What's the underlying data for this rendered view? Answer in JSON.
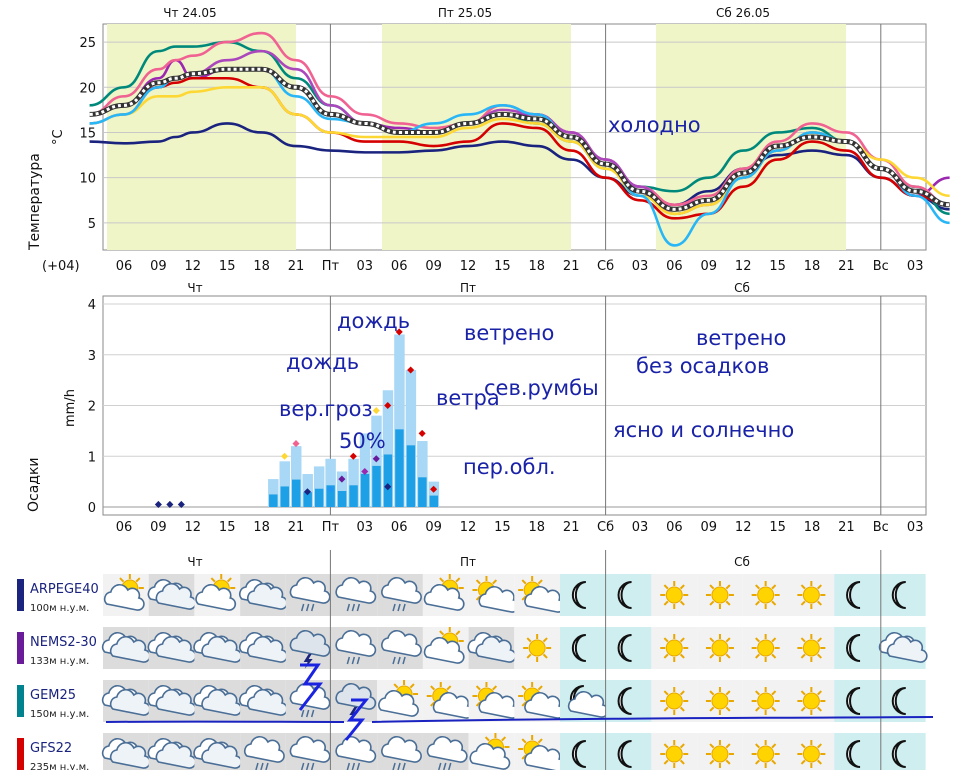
{
  "header_days": [
    {
      "label": "Чт 24.05"
    },
    {
      "label": "Пт 25.05"
    },
    {
      "label": "Сб 26.05"
    }
  ],
  "tz_label": "(+04)",
  "time_ticks": [
    "06",
    "09",
    "12",
    "15",
    "18",
    "21",
    "Пт",
    "03",
    "06",
    "09",
    "12",
    "15",
    "18",
    "21",
    "Сб",
    "03",
    "06",
    "09",
    "12",
    "15",
    "18",
    "21",
    "Вс",
    "03"
  ],
  "day_short": [
    "Чт",
    "Пт",
    "Сб"
  ],
  "temp_panel": {
    "ylabel": "Температура",
    "unit": "°C"
  },
  "precip_panel": {
    "ylabel": "Осадки",
    "unit": "mm/h"
  },
  "annotations": {
    "cold": "холодно",
    "rain1": "дождь",
    "rain2": "дождь",
    "thunder": "вер.гроз",
    "pct": "50%",
    "windy1": "ветрено",
    "wind": "ветра",
    "north": "сев.румбы",
    "cloudy": "пер.обл.",
    "windy2": "ветрено",
    "dry": "без осадков",
    "sunny": "ясно и солнечно"
  },
  "models": [
    {
      "name": "ARPEGE40",
      "alt": "100м н.у.м.",
      "color": "#1a237e",
      "icons": [
        "pc",
        "c",
        "pc",
        "c",
        "cr",
        "cr",
        "cr",
        "pc",
        "ps",
        "ps",
        "mn",
        "mn",
        "s",
        "s",
        "s",
        "s",
        "mn",
        "mn"
      ]
    },
    {
      "name": "NEMS2-30",
      "alt": "133м н.у.м.",
      "color": "#6a1b9a",
      "icons": [
        "c",
        "c",
        "c",
        "c",
        "ct",
        "cr",
        "cr",
        "pc",
        "c",
        "s",
        "mn",
        "mn",
        "s",
        "s",
        "s",
        "s",
        "mn",
        "c"
      ]
    },
    {
      "name": "GEM25",
      "alt": "150м н.у.м.",
      "color": "#00838f",
      "icons": [
        "c",
        "c",
        "c",
        "c",
        "cr",
        "ct",
        "pc",
        "ps",
        "ps",
        "ps",
        "mc",
        "mn",
        "s",
        "s",
        "s",
        "s",
        "mn",
        "mn"
      ]
    },
    {
      "name": "GFS22",
      "alt": "235м н.у.м.",
      "color": "#d50000",
      "icons": [
        "c",
        "c",
        "c",
        "cr",
        "cr",
        "cr",
        "cr",
        "cr",
        "pc",
        "ps",
        "mn",
        "mn",
        "s",
        "s",
        "s",
        "s",
        "mn",
        "mn"
      ]
    }
  ],
  "chart_data": [
    {
      "type": "line",
      "ylabel": "Температура",
      "unit": "°C",
      "x_hours": [
        3,
        6,
        9,
        10.5,
        12,
        15,
        18,
        21,
        24,
        27,
        30,
        33,
        36,
        39,
        42,
        45,
        48,
        51,
        54,
        57,
        60,
        63,
        66,
        69,
        72,
        75,
        78
      ],
      "ylim": [
        2,
        27
      ],
      "yticks": [
        5,
        10,
        15,
        20,
        25
      ],
      "series": [
        {
          "color": "#1a237e",
          "values": [
            14,
            13.8,
            14,
            14.5,
            15,
            16,
            15,
            13.5,
            13,
            12.8,
            12.8,
            13,
            13.5,
            14,
            13.5,
            12,
            10,
            8,
            7,
            8.5,
            11,
            12.5,
            13,
            12.5,
            10,
            8,
            6.5
          ]
        },
        {
          "color": "#9c27b0",
          "values": [
            17,
            18,
            21,
            23,
            21,
            22,
            22,
            20,
            17,
            16,
            15.5,
            15,
            16,
            17,
            17,
            15,
            12,
            9,
            7,
            7.5,
            10,
            13,
            15,
            14,
            11,
            8,
            10
          ]
        },
        {
          "color": "#00897b",
          "values": [
            18,
            20,
            24,
            24.5,
            24.5,
            25,
            24,
            21,
            18,
            16,
            15,
            15,
            16,
            17,
            16,
            14,
            11,
            9,
            8.5,
            10,
            13,
            15,
            15.5,
            14,
            11,
            9,
            6
          ]
        },
        {
          "color": "#f06292",
          "values": [
            17,
            19,
            22,
            23,
            23.5,
            25,
            26,
            23,
            19,
            17,
            16,
            15.5,
            16,
            18,
            17,
            15,
            12,
            9,
            7,
            8,
            11,
            14,
            16,
            15,
            12,
            9,
            7
          ]
        },
        {
          "color": "#ab47bc",
          "values": [
            16,
            17,
            20,
            21,
            21.5,
            23,
            24,
            22,
            18,
            16,
            15,
            15,
            16,
            17.5,
            17,
            15,
            12,
            9,
            6,
            7,
            10,
            13,
            15,
            14,
            11,
            8,
            7
          ]
        },
        {
          "color": "#d50000",
          "values": [
            17,
            18,
            20,
            20.5,
            21,
            21,
            20,
            17,
            15,
            14,
            14,
            13.5,
            14,
            16,
            15.5,
            13,
            10,
            7.5,
            5.5,
            6,
            9,
            12,
            14,
            13,
            10,
            8,
            7
          ]
        },
        {
          "color": "#fdd835",
          "values": [
            16,
            17,
            19,
            19,
            19.5,
            20,
            20,
            17,
            15,
            14.5,
            14.5,
            14.5,
            15.5,
            16.5,
            16,
            14,
            11,
            8,
            6,
            7,
            10,
            13,
            15,
            14,
            12,
            10,
            8
          ]
        },
        {
          "color": "#29b6f6",
          "values": [
            16,
            17,
            20,
            21,
            21.5,
            22,
            22,
            19,
            16.5,
            16,
            15,
            16,
            17,
            18,
            17,
            14.5,
            11.5,
            8,
            2.5,
            6,
            10,
            13,
            15,
            14,
            11,
            8,
            5
          ]
        },
        {
          "color": "#666666",
          "values": [
            17,
            18,
            20.5,
            21,
            21.5,
            22,
            22,
            20,
            17,
            16,
            15,
            15,
            16,
            17,
            16.5,
            14.5,
            11.5,
            8.5,
            6.5,
            7.5,
            10.5,
            13.5,
            14.5,
            14,
            11,
            8.5,
            7
          ],
          "dashed": true
        }
      ]
    },
    {
      "type": "bar",
      "ylabel": "Осадки",
      "unit": "mm/h",
      "ylim": [
        0,
        4
      ],
      "yticks": [
        0,
        1,
        2,
        3,
        4
      ],
      "bars": [
        {
          "x": 19,
          "h": 0.55
        },
        {
          "x": 20,
          "h": 0.9
        },
        {
          "x": 21,
          "h": 1.2
        },
        {
          "x": 22,
          "h": 0.65
        },
        {
          "x": 23,
          "h": 0.8
        },
        {
          "x": 24,
          "h": 0.95
        },
        {
          "x": 25,
          "h": 0.7
        },
        {
          "x": 26,
          "h": 0.95
        },
        {
          "x": 27,
          "h": 1.45
        },
        {
          "x": 28,
          "h": 1.8
        },
        {
          "x": 29,
          "h": 2.3
        },
        {
          "x": 30,
          "h": 3.4
        },
        {
          "x": 31,
          "h": 2.7
        },
        {
          "x": 32,
          "h": 1.3
        },
        {
          "x": 33,
          "h": 0.5
        }
      ],
      "points": [
        {
          "x": 9,
          "y": 0.05,
          "c": "#1a237e"
        },
        {
          "x": 10,
          "y": 0.05,
          "c": "#1a237e"
        },
        {
          "x": 11,
          "y": 0.05,
          "c": "#1a237e"
        },
        {
          "x": 20,
          "y": 1.0,
          "c": "#fdd835"
        },
        {
          "x": 21,
          "y": 1.25,
          "c": "#f06292"
        },
        {
          "x": 22,
          "y": 0.3,
          "c": "#1a237e"
        },
        {
          "x": 26,
          "y": 1.0,
          "c": "#d50000"
        },
        {
          "x": 27,
          "y": 0.7,
          "c": "#9c27b0"
        },
        {
          "x": 28,
          "y": 0.95,
          "c": "#6a1b9a"
        },
        {
          "x": 28,
          "y": 1.9,
          "c": "#fdd835"
        },
        {
          "x": 29,
          "y": 2.0,
          "c": "#d50000"
        },
        {
          "x": 29,
          "y": 0.4,
          "c": "#1a237e"
        },
        {
          "x": 30,
          "y": 3.45,
          "c": "#d50000"
        },
        {
          "x": 31,
          "y": 2.7,
          "c": "#d50000"
        },
        {
          "x": 32,
          "y": 1.45,
          "c": "#d50000"
        },
        {
          "x": 33,
          "y": 0.35,
          "c": "#d50000"
        },
        {
          "x": 25,
          "y": 0.55,
          "c": "#6a1b9a"
        },
        {
          "x": 24,
          "y": 0.35,
          "c": "#2196f3"
        }
      ]
    }
  ]
}
